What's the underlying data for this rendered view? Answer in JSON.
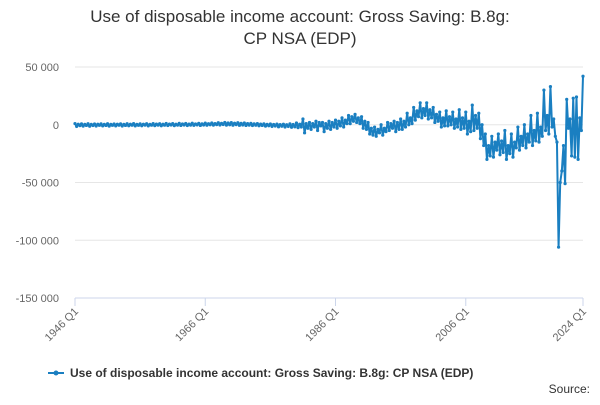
{
  "chart_data": {
    "type": "line",
    "title": "Use of disposable income account: Gross Saving: B.8g: CP NSA (EDP)",
    "source": "Source:",
    "categories": [
      "1946 Q1",
      null,
      null,
      null,
      null,
      null,
      null,
      null,
      null,
      null,
      null,
      null,
      null,
      null,
      null,
      null,
      null,
      null,
      null,
      null,
      null,
      null,
      null,
      null,
      null,
      null,
      null,
      null,
      null,
      null,
      null,
      null,
      null,
      null,
      null,
      null,
      null,
      null,
      null,
      null,
      null,
      null,
      null,
      null,
      null,
      null,
      null,
      null,
      null,
      null,
      null,
      null,
      null,
      null,
      null,
      null,
      null,
      null,
      null,
      null,
      null,
      null,
      null,
      null,
      null,
      null,
      null,
      null,
      null,
      null,
      null,
      null,
      null,
      null,
      null,
      null,
      null,
      null,
      null,
      null,
      "1966 Q1",
      null,
      null,
      null,
      null,
      null,
      null,
      null,
      null,
      null,
      null,
      null,
      null,
      null,
      null,
      null,
      null,
      null,
      null,
      null,
      null,
      null,
      null,
      null,
      null,
      null,
      null,
      null,
      null,
      null,
      null,
      null,
      null,
      null,
      null,
      null,
      null,
      null,
      null,
      null,
      null,
      null,
      null,
      null,
      null,
      null,
      null,
      null,
      null,
      null,
      null,
      null,
      null,
      null,
      null,
      null,
      null,
      null,
      null,
      null,
      null,
      null,
      null,
      null,
      null,
      null,
      null,
      null,
      null,
      null,
      null,
      null,
      null,
      null,
      null,
      null,
      null,
      null,
      null,
      null,
      "1986 Q1",
      null,
      null,
      null,
      null,
      null,
      null,
      null,
      null,
      null,
      null,
      null,
      null,
      null,
      null,
      null,
      null,
      null,
      null,
      null,
      null,
      null,
      null,
      null,
      null,
      null,
      null,
      null,
      null,
      null,
      null,
      null,
      null,
      null,
      null,
      null,
      null,
      null,
      null,
      null,
      null,
      null,
      null,
      null,
      null,
      null,
      null,
      null,
      null,
      null,
      null,
      null,
      null,
      null,
      null,
      null,
      null,
      null,
      null,
      null,
      null,
      null,
      null,
      null,
      null,
      null,
      null,
      null,
      null,
      null,
      null,
      null,
      null,
      null,
      null,
      null,
      null,
      null,
      null,
      null,
      "2006 Q1",
      null,
      null,
      null,
      null,
      null,
      null,
      null,
      null,
      null,
      null,
      null,
      null,
      null,
      null,
      null,
      null,
      null,
      null,
      null,
      null,
      null,
      null,
      null,
      null,
      null,
      null,
      null,
      null,
      null,
      null,
      null,
      null,
      null,
      null,
      null,
      null,
      null,
      null,
      null,
      null,
      null,
      null,
      null,
      null,
      null,
      null,
      null,
      null,
      null,
      null,
      null,
      null,
      null,
      null,
      null,
      null,
      null,
      null,
      null,
      null,
      null,
      null,
      null,
      null,
      null,
      null,
      null,
      null,
      null,
      null,
      null,
      "2024 Q1"
    ],
    "series": [
      {
        "name": "Use of disposable income account: Gross Saving: B.8g: CP NSA (EDP)",
        "color": "#1a7fc1",
        "values": [
          1000,
          -1500,
          500,
          -800,
          800,
          -1200,
          400,
          -600,
          900,
          -1300,
          300,
          -700,
          700,
          -1100,
          500,
          -500,
          800,
          -1000,
          400,
          -600,
          900,
          -1200,
          300,
          -500,
          700,
          -1000,
          500,
          -400,
          800,
          -1100,
          400,
          -600,
          900,
          -900,
          500,
          -400,
          1000,
          -1000,
          400,
          -500,
          800,
          -900,
          500,
          -300,
          900,
          -1000,
          400,
          -400,
          1000,
          -800,
          600,
          -300,
          900,
          -900,
          500,
          -400,
          1100,
          -700,
          600,
          -200,
          1000,
          -800,
          500,
          -300,
          1200,
          -600,
          700,
          -200,
          1100,
          -700,
          600,
          -300,
          1300,
          -500,
          700,
          -100,
          1200,
          -600,
          800,
          -200,
          1400,
          -400,
          900,
          0,
          1500,
          -300,
          1000,
          100,
          1800,
          -200,
          1200,
          200,
          2000,
          -300,
          1500,
          0,
          1900,
          -400,
          1300,
          100,
          1700,
          -500,
          1200,
          -200,
          1500,
          -600,
          1000,
          -300,
          1200,
          -700,
          800,
          -400,
          1000,
          -900,
          600,
          -600,
          800,
          -1200,
          300,
          -900,
          700,
          -1500,
          200,
          -1100,
          600,
          -1800,
          100,
          -1300,
          500,
          -2000,
          0,
          -1500,
          800,
          -2200,
          200,
          -1800,
          1500,
          -2500,
          500,
          -2000,
          5000,
          -7000,
          1000,
          -3000,
          2000,
          -4000,
          1000,
          -2000,
          3000,
          -5000,
          2000,
          -1000,
          2000,
          -6000,
          1000,
          -3000,
          3000,
          -4000,
          2000,
          -2000,
          4000,
          -3000,
          3000,
          -1000,
          6000,
          -2000,
          4000,
          1000,
          8000,
          1000,
          7000,
          3000,
          9000,
          2000,
          6000,
          1000,
          7000,
          -3000,
          3000,
          -4000,
          2000,
          -8000,
          -3000,
          -9000,
          -2000,
          -10000,
          -4000,
          -7000,
          0,
          -9000,
          -3000,
          -6000,
          2000,
          -5000,
          1000,
          -3000,
          3000,
          -6000,
          2000,
          -4000,
          5000,
          -4000,
          3000,
          -2000,
          10000,
          0,
          6000,
          1000,
          15000,
          4000,
          12000,
          7000,
          19000,
          6000,
          14000,
          8000,
          19000,
          5000,
          13000,
          6000,
          15000,
          2000,
          9000,
          3000,
          11000,
          -2000,
          6000,
          -1000,
          12000,
          -1000,
          7000,
          0,
          11000,
          -3000,
          5000,
          -2000,
          13000,
          -4000,
          6000,
          -3000,
          11000,
          -8000,
          3000,
          -6000,
          17000,
          -5000,
          8000,
          -3000,
          10000,
          -12000,
          0,
          -18000,
          -8000,
          -30000,
          -18000,
          -27000,
          -10000,
          -28000,
          -15000,
          -22000,
          -8000,
          -26000,
          -14000,
          -24000,
          -5000,
          -30000,
          -18000,
          -25000,
          -8000,
          -28000,
          -15000,
          -20000,
          -2000,
          -22000,
          -10000,
          -18000,
          0,
          -20000,
          -8000,
          -15000,
          8000,
          -18000,
          -5000,
          -14000,
          10000,
          -15000,
          -2000,
          -10000,
          30000,
          -5000,
          8000,
          -8000,
          33000,
          -2000,
          5000,
          -10000,
          -15000,
          -106000,
          -50000,
          -40000,
          -18000,
          -51000,
          22000,
          -3000,
          5000,
          -27000,
          23000,
          -28000,
          24000,
          -30000,
          6000,
          -5000,
          42000
        ]
      }
    ],
    "ylim": [
      -150000,
      50000
    ],
    "yticks": [
      {
        "value": -150000,
        "label": "-150 000"
      },
      {
        "value": -100000,
        "label": "-100 000"
      },
      {
        "value": -50000,
        "label": "-50 000"
      },
      0,
      {
        "value": 50000,
        "label": "50 000"
      }
    ],
    "grid": true,
    "legend": "bottom"
  }
}
